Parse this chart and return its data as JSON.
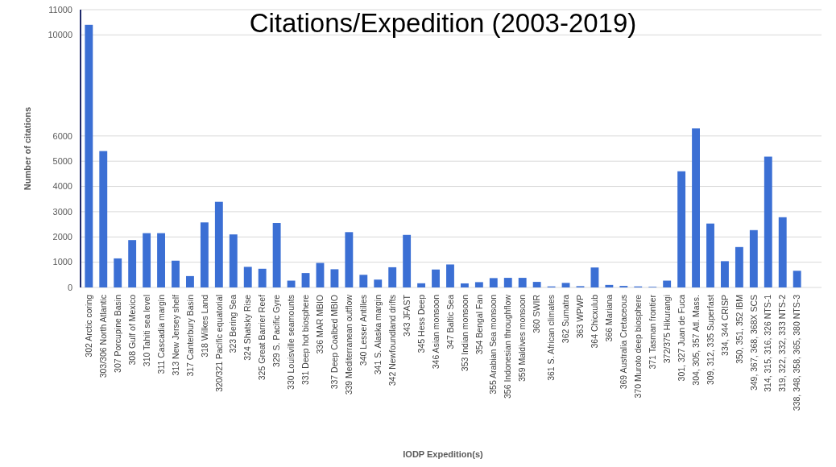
{
  "chart_data": {
    "type": "bar",
    "title": "Citations/Expedition (2003-2019)",
    "xlabel": "IODP Expedition(s)",
    "ylabel": "Number of citations",
    "categories": [
      "302 Arctic coring",
      "303/306 North Atlantic",
      "307 Porcupine Basin",
      "308 Gulf of Mexico",
      "310 Tahiti sea level",
      "311 Cascadia margin",
      "313 New Jersey shelf",
      "317 Canterbury Basin",
      "318 Wilkes Land",
      "320/321 Pacific equatorial",
      "323 Bering Sea",
      "324 Shatsky Rise",
      "325 Great Barrier Reef",
      "329 S. Pacific Gyre",
      "330 Louisville seamounts",
      "331 Deep hot biosphere",
      "336 MAR MBIO",
      "337 Deep Coalbed MBIO",
      "339 Mediterranean outflow",
      "340 Lesser Antilles",
      "341 S. Alaska margin",
      "342 Newfoundland drifts",
      "343 JFAST",
      "345 Hess Deep",
      "346 Asian monsoon",
      "347 Baltic Sea",
      "353 Indian monsoon",
      "354 Bengal Fan",
      "355 Arabian Sea monsoon",
      "356 Indonesian throughflow",
      "359 Maldives monsoon",
      "360 SWIR",
      "361 S. African climates",
      "362 Sumatra",
      "363 WPWP",
      "364 Chicxulub",
      "366 Mariana",
      "369 Australia Cretaceous",
      "370 Muroto deep biosphere",
      "371 Tasman frontier",
      "372/375 Hikurangi",
      "301, 327 Juan de Fuca",
      "304, 305, 357 Atl. Mass.",
      "309, 312, 335 Superfast",
      "334, 344 CRISP",
      "350, 351, 352 IBM",
      "349, 367, 368, 368X SCS",
      "314, 315, 316, 326 NTS-1",
      "319, 322, 332, 333 NTS-2",
      "338, 348, 358, 365, 380 NTS-3"
    ],
    "values": [
      10400,
      5400,
      1150,
      1875,
      2150,
      2150,
      1060,
      450,
      2575,
      3390,
      2100,
      815,
      740,
      2550,
      270,
      570,
      970,
      720,
      2190,
      500,
      310,
      800,
      2080,
      165,
      710,
      910,
      160,
      210,
      370,
      380,
      380,
      220,
      40,
      180,
      50,
      790,
      100,
      60,
      40,
      25,
      270,
      4600,
      6300,
      2530,
      1040,
      1600,
      2270,
      5180,
      2780,
      660
    ],
    "color": "#3b6fd4",
    "ylim": [
      0,
      11000
    ],
    "yticks": [
      0,
      1000,
      2000,
      3000,
      4000,
      5000,
      6000,
      10000,
      11000
    ],
    "grid": "y"
  }
}
